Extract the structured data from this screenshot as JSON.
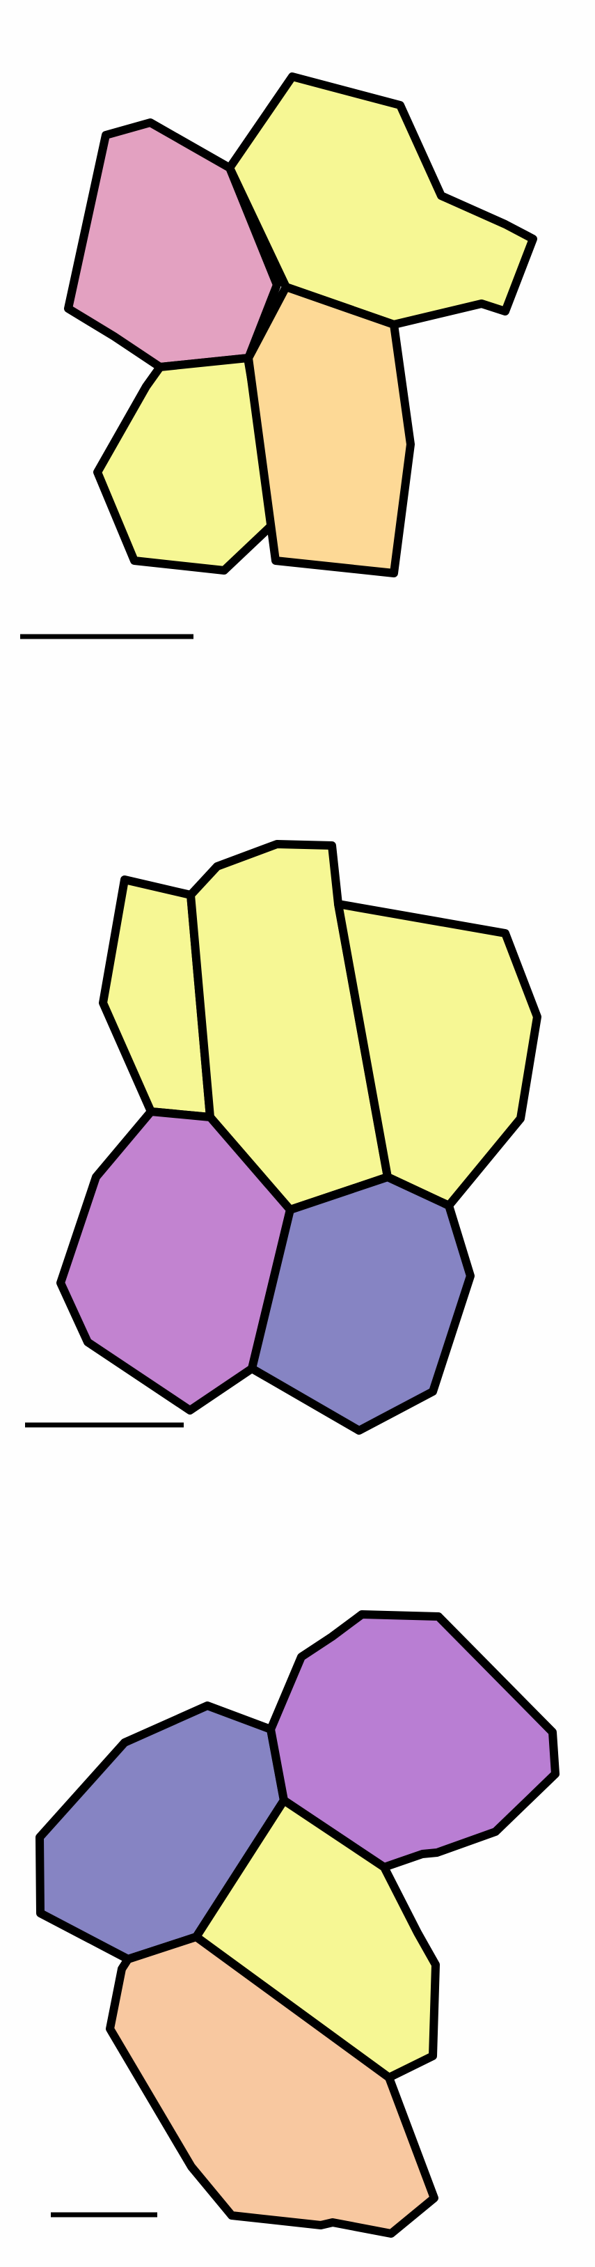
{
  "figure": {
    "background": "#fefefe",
    "stroke_color": "#000000",
    "colors": {
      "pink": "#e3a1c1",
      "yellow": "#f6f794",
      "peach": "#fdd996",
      "purple": "#c283d0",
      "blue_violet": "#8684c3",
      "lavender": "#b97ed3",
      "salmon": "#f8c8a0"
    },
    "panels": [
      {
        "id": "panel-1",
        "cells": [
          {
            "id": "cell-top-left",
            "color_key": "pink"
          },
          {
            "id": "cell-top-right",
            "color_key": "yellow"
          },
          {
            "id": "cell-bottom-left",
            "color_key": "yellow"
          },
          {
            "id": "cell-bottom-right",
            "color_key": "peach"
          }
        ]
      },
      {
        "id": "panel-2",
        "cells": [
          {
            "id": "cell-top-left",
            "color_key": "yellow"
          },
          {
            "id": "cell-top-middle",
            "color_key": "yellow"
          },
          {
            "id": "cell-top-right",
            "color_key": "yellow"
          },
          {
            "id": "cell-bottom-left",
            "color_key": "purple"
          },
          {
            "id": "cell-bottom-right",
            "color_key": "blue_violet"
          }
        ]
      },
      {
        "id": "panel-3",
        "cells": [
          {
            "id": "cell-top-left",
            "color_key": "blue_violet"
          },
          {
            "id": "cell-top-right",
            "color_key": "lavender"
          },
          {
            "id": "cell-middle",
            "color_key": "yellow"
          },
          {
            "id": "cell-bottom",
            "color_key": "salmon"
          }
        ]
      }
    ]
  }
}
